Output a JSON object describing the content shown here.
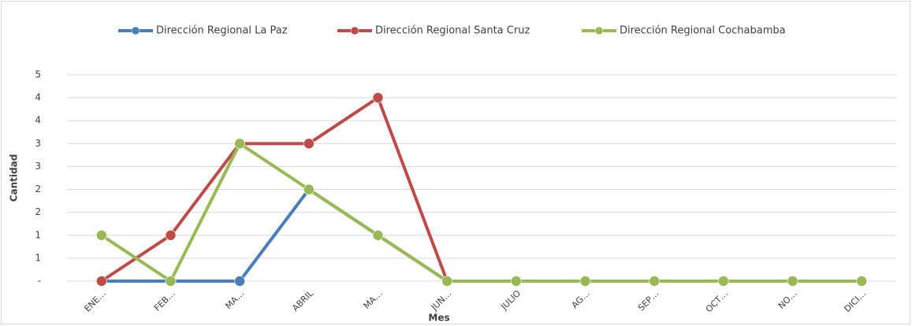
{
  "chart_data": {
    "type": "line",
    "categories": [
      "ENE…",
      "FEB…",
      "MA…",
      "ABRIL",
      "MA…",
      "JUN…",
      "JULIO",
      "AG…",
      "SEP…",
      "OCT…",
      "NO…",
      "DICI…"
    ],
    "series": [
      {
        "name": "Dirección Regional La Paz",
        "color": "#4a7ebb",
        "values": [
          0,
          0,
          0,
          2,
          1,
          0,
          0,
          0,
          0,
          0,
          0,
          0
        ]
      },
      {
        "name": "Dirección Regional Santa Cruz",
        "color": "#be4b48",
        "values": [
          0,
          1,
          3,
          3,
          4,
          0,
          0,
          0,
          0,
          0,
          0,
          0
        ]
      },
      {
        "name": "Dirección Regional Cochabamba",
        "color": "#98b954",
        "values": [
          1,
          0,
          3,
          2,
          1,
          0,
          0,
          0,
          0,
          0,
          0,
          0
        ]
      }
    ],
    "xlabel": "Mes",
    "ylabel": "Cantidad",
    "ylim": [
      0,
      4.5
    ],
    "yticks": [
      {
        "value": 0,
        "label": "-"
      },
      {
        "value": 0.5,
        "label": "1"
      },
      1,
      {
        "value": 1.5,
        "label": "2"
      },
      2,
      {
        "value": 2.5,
        "label": "3"
      },
      3,
      {
        "value": 3.5,
        "label": "4"
      },
      4,
      {
        "value": 4.5,
        "label": "5"
      }
    ],
    "grid": true,
    "legend": "top"
  }
}
